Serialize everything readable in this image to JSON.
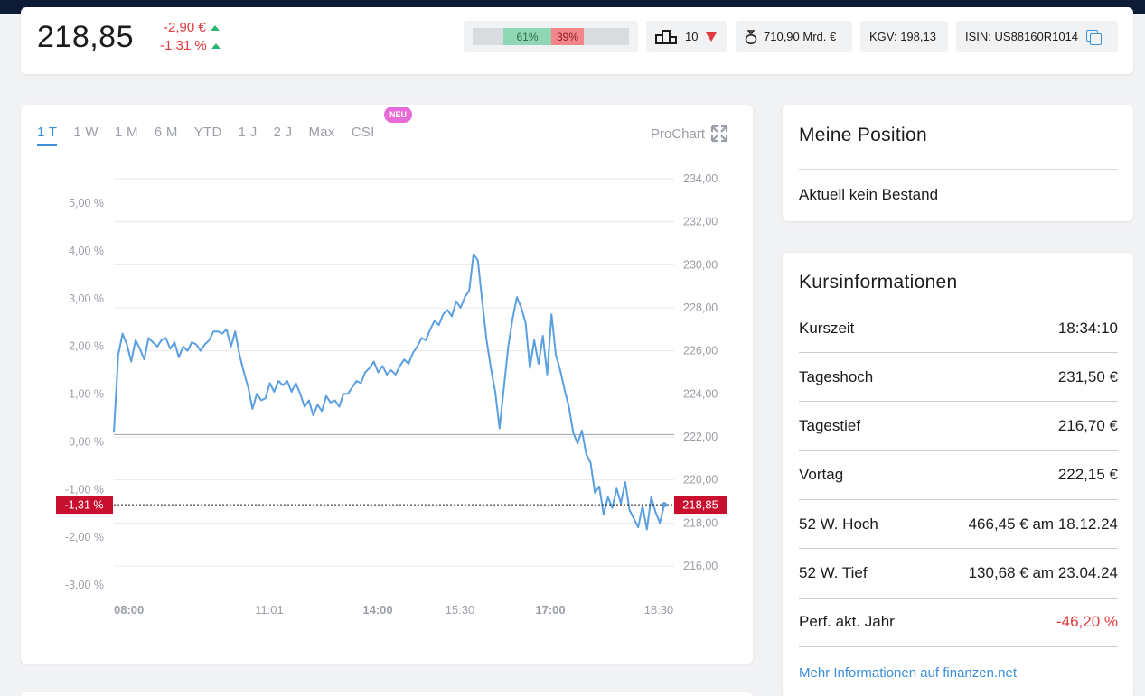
{
  "header": {
    "price": "218,85",
    "change_abs": "-2,90 €",
    "change_pct": "-1,31 %",
    "sentiment": {
      "bull_label": "61%",
      "bear_label": "39%",
      "bull_pct": 61,
      "bear_pct": 39
    },
    "rank": "10",
    "market_cap": "710,90 Mrd. €",
    "kgv": "KGV: 198,13",
    "isin": "ISIN: US88160R1014"
  },
  "chart_tabs": {
    "items": [
      "1 T",
      "1 W",
      "1 M",
      "6 M",
      "YTD",
      "1 J",
      "2 J",
      "Max",
      "CSI"
    ],
    "active": "1 T",
    "badge": "NEU",
    "prochart": "ProChart"
  },
  "chart_data": {
    "type": "line",
    "x_tick_labels": [
      "08:00",
      "11:01",
      "14:00",
      "15:30",
      "17:00",
      "18:30"
    ],
    "y_left_ticks": [
      "5,00 %",
      "4,00 %",
      "3,00 %",
      "2,00 %",
      "1,00 %",
      "0,00 %",
      "-1,00 %",
      "-2,00 %",
      "-3,00 %"
    ],
    "y_right_ticks": [
      "234,00",
      "232,00",
      "230,00",
      "228,00",
      "226,00",
      "224,00",
      "222,00",
      "220,00",
      "218,00",
      "216,00"
    ],
    "y_left_range": [
      -3,
      5
    ],
    "y_right_range": [
      216,
      234
    ],
    "baseline": 222.15,
    "current_label_left": "-1,31 %",
    "current_label_right": "218,85",
    "current_value": 218.85,
    "series": [
      {
        "values": [
          222.2,
          225.8,
          226.8,
          226.3,
          225.5,
          226.5,
          226.1,
          225.6,
          226.6,
          226.4,
          226.2,
          226.5,
          226.6,
          226.1,
          226.4,
          225.7,
          226.2,
          226.0,
          226.4,
          226.3,
          226.0,
          226.3,
          226.5,
          226.9,
          226.9,
          226.8,
          227.0,
          226.2,
          226.9,
          225.8,
          225.0,
          224.3,
          223.3,
          224.0,
          223.7,
          223.8,
          224.5,
          224.1,
          224.6,
          224.4,
          224.6,
          224.1,
          224.5,
          224.0,
          223.4,
          223.7,
          223.0,
          223.5,
          223.2,
          223.9,
          223.6,
          223.7,
          223.4,
          224.0,
          224.0,
          224.3,
          224.6,
          224.5,
          225.0,
          225.2,
          225.5,
          225.0,
          225.3,
          224.9,
          225.1,
          224.9,
          225.3,
          225.6,
          225.4,
          225.9,
          226.2,
          226.6,
          226.5,
          227.0,
          227.4,
          227.2,
          227.7,
          227.9,
          227.6,
          228.3,
          228.0,
          228.5,
          228.8,
          230.5,
          230.2,
          228.3,
          226.5,
          225.2,
          224.1,
          222.4,
          224.3,
          226.2,
          227.5,
          228.5,
          228.0,
          227.3,
          225.2,
          226.5,
          225.4,
          226.7,
          224.9,
          227.7,
          225.8,
          225.1,
          224.2,
          223.4,
          222.2,
          221.7,
          222.3,
          221.2,
          220.8,
          219.4,
          219.7,
          218.4,
          219.2,
          218.7,
          219.6,
          218.9,
          219.9,
          218.6,
          218.2,
          217.8,
          218.8,
          217.7,
          219.2,
          218.5,
          218.0,
          218.85
        ]
      }
    ]
  },
  "position": {
    "title": "Meine Position",
    "empty_text": "Aktuell kein Bestand"
  },
  "kursinfo": {
    "title": "Kursinformationen",
    "rows": [
      {
        "label": "Kurszeit",
        "value": "18:34:10"
      },
      {
        "label": "Tageshoch",
        "value": "231,50 €"
      },
      {
        "label": "Tagestief",
        "value": "216,70 €"
      },
      {
        "label": "Vortag",
        "value": "222,15 €"
      },
      {
        "label": "52 W. Hoch",
        "value": "466,45 € am 18.12.24"
      },
      {
        "label": "52 W. Tief",
        "value": "130,68 € am 23.04.24"
      },
      {
        "label": "Perf. akt. Jahr",
        "value": "-46,20 %"
      }
    ],
    "more_link": "Mehr Informationen auf finanzen.net"
  },
  "colors": {
    "line": "#5a9fe0",
    "negative": "#e03a3e",
    "positive": "#2bb673",
    "accent": "#3a8fd9",
    "topbar": "#0d1b36"
  }
}
